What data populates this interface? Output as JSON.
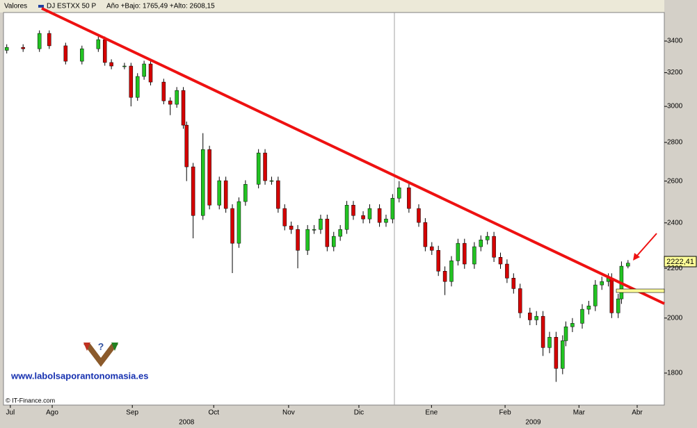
{
  "chart_data": {
    "type": "candlestick",
    "header": "Valores",
    "legend": "DJ ESTXX 50 P",
    "stats": "Año +Bajo: 1765,49 +Alto: 2608,15",
    "last_value_label": "2222,41",
    "watermark": "www.labolsaporantonomasia.es",
    "credit": "© IT-Finance.com",
    "years": [
      {
        "value": 56,
        "label": "2008"
      },
      {
        "value": 162,
        "label": "2009"
      }
    ],
    "up_color": "#22c322",
    "down_color": "#d40000",
    "log_scale": true,
    "xlim": [
      0,
      202.1
    ],
    "xticks": [
      {
        "value": 2.1,
        "label": "Jul"
      },
      {
        "value": 14.9,
        "label": "Ago"
      },
      {
        "value": 39.4,
        "label": "Sep"
      },
      {
        "value": 64.3,
        "label": "Oct"
      },
      {
        "value": 87.2,
        "label": "Nov"
      },
      {
        "value": 108.7,
        "label": "Dic"
      },
      {
        "value": 130.9,
        "label": "Ene"
      },
      {
        "value": 153.4,
        "label": "Feb"
      },
      {
        "value": 176,
        "label": "Mar"
      },
      {
        "value": 193.8,
        "label": "Abr"
      }
    ],
    "ylim": [
      1693,
      3639
    ],
    "yticks": [
      1800,
      2000,
      2200,
      2400,
      2600,
      2800,
      3000,
      3200,
      3400
    ],
    "x": [
      1,
      6,
      11,
      14,
      19,
      24,
      29,
      31,
      33,
      37,
      39,
      41,
      43,
      45,
      49,
      51,
      53,
      55,
      56,
      58,
      61,
      63,
      66,
      68,
      70,
      72,
      74,
      78,
      80,
      82,
      84,
      86,
      88,
      90,
      93,
      95,
      97,
      99,
      101,
      103,
      105,
      107,
      110,
      112,
      115,
      117,
      119,
      121,
      124,
      127,
      129,
      131,
      133,
      135,
      137,
      139,
      141,
      144,
      146,
      148,
      150,
      152,
      154,
      156,
      158,
      161,
      163,
      165,
      167,
      169,
      171,
      172,
      174,
      177,
      179,
      181,
      183,
      185,
      186,
      188,
      189,
      191
    ],
    "open": [
      3340,
      3359,
      3350,
      3450,
      3369,
      3271,
      3350,
      3409,
      3263,
      3241,
      3241,
      3052,
      3177,
      3254,
      3143,
      3032,
      3012,
      3093,
      2894,
      2672,
      2434,
      2762,
      2483,
      2602,
      2467,
      2308,
      2500,
      2584,
      2744,
      2602,
      2602,
      2467,
      2386,
      2370,
      2277,
      2370,
      2370,
      2418,
      2293,
      2339,
      2370,
      2483,
      2434,
      2418,
      2467,
      2402,
      2418,
      2516,
      2567,
      2467,
      2402,
      2293,
      2277,
      2188,
      2145,
      2232,
      2308,
      2218,
      2293,
      2323,
      2339,
      2247,
      2218,
      2159,
      2116,
      2020,
      1993,
      2007,
      1890,
      1928,
      1816,
      1915,
      1967,
      1980,
      2034,
      2047,
      2131,
      2145,
      2159,
      2020,
      2075,
      2209
    ],
    "high": [
      3379,
      3379,
      3470,
      3470,
      3389,
      3370,
      3429,
      3429,
      3283,
      3261,
      3261,
      3197,
      3274,
      3274,
      3163,
      3052,
      3113,
      3113,
      2914,
      2692,
      2850,
      2782,
      2622,
      2622,
      2487,
      2520,
      2604,
      2764,
      2764,
      2622,
      2622,
      2487,
      2406,
      2390,
      2390,
      2390,
      2438,
      2438,
      2359,
      2390,
      2503,
      2503,
      2454,
      2487,
      2487,
      2438,
      2536,
      2600,
      2587,
      2487,
      2422,
      2313,
      2297,
      2208,
      2252,
      2328,
      2328,
      2313,
      2343,
      2359,
      2359,
      2267,
      2238,
      2179,
      2136,
      2040,
      2027,
      2027,
      1948,
      1948,
      1935,
      1987,
      2000,
      2054,
      2067,
      2151,
      2165,
      2179,
      2179,
      2095,
      2229,
      2235
    ],
    "low": [
      3320,
      3330,
      3330,
      3349,
      3251,
      3251,
      3330,
      3243,
      3221,
      3221,
      3000,
      3032,
      3157,
      3123,
      3012,
      2950,
      2992,
      2874,
      2600,
      2330,
      2414,
      2463,
      2463,
      2447,
      2180,
      2288,
      2480,
      2564,
      2582,
      2582,
      2447,
      2366,
      2350,
      2200,
      2257,
      2350,
      2350,
      2273,
      2273,
      2319,
      2350,
      2414,
      2398,
      2398,
      2382,
      2382,
      2398,
      2496,
      2447,
      2382,
      2273,
      2257,
      2168,
      2090,
      2125,
      2212,
      2198,
      2198,
      2273,
      2303,
      2227,
      2198,
      2139,
      2096,
      2000,
      1973,
      1973,
      1860,
      1870,
      1770,
      1796,
      1895,
      1947,
      1960,
      2014,
      2027,
      2111,
      2125,
      2000,
      2000,
      2055,
      2200
    ],
    "close": [
      3359,
      3350,
      3450,
      3369,
      3271,
      3350,
      3409,
      3263,
      3241,
      3241,
      3052,
      3177,
      3254,
      3143,
      3032,
      3012,
      3093,
      2894,
      2672,
      2434,
      2762,
      2483,
      2602,
      2467,
      2308,
      2500,
      2584,
      2744,
      2602,
      2602,
      2467,
      2386,
      2370,
      2277,
      2370,
      2370,
      2418,
      2293,
      2339,
      2370,
      2483,
      2434,
      2418,
      2467,
      2402,
      2418,
      2516,
      2567,
      2467,
      2402,
      2293,
      2277,
      2188,
      2145,
      2232,
      2308,
      2218,
      2293,
      2323,
      2339,
      2247,
      2218,
      2159,
      2116,
      2020,
      1993,
      2007,
      1890,
      1928,
      1816,
      1915,
      1967,
      1980,
      2034,
      2047,
      2131,
      2145,
      2159,
      2020,
      2075,
      2209,
      2222
    ]
  }
}
